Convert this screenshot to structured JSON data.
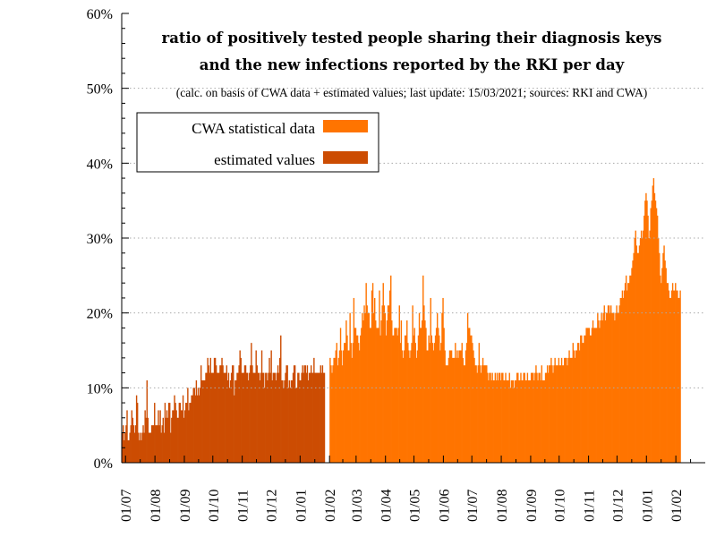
{
  "chart_data": {
    "type": "bar",
    "title_lines": [
      "ratio of positively tested people sharing their diagnosis keys",
      "and the new infections reported by the RKI per day"
    ],
    "subtitle": "(calc. on basis of CWA data + estimated values; last update: 15/03/2021; sources: RKI and CWA)",
    "xlabel": "",
    "ylabel": "",
    "y_unit": "%",
    "ylim": [
      0,
      60
    ],
    "y_ticks": [
      "0%",
      "10%",
      "20%",
      "30%",
      "40%",
      "50%",
      "60%"
    ],
    "x_range": [
      "2020-06-27",
      "2022-03-04"
    ],
    "x_ticks": [
      {
        "label": "01/07",
        "date": "2020-07-01"
      },
      {
        "label": "01/08",
        "date": "2020-08-01"
      },
      {
        "label": "01/09",
        "date": "2020-09-01"
      },
      {
        "label": "01/10",
        "date": "2020-10-01"
      },
      {
        "label": "01/11",
        "date": "2020-11-01"
      },
      {
        "label": "01/12",
        "date": "2020-12-01"
      },
      {
        "label": "01/01",
        "date": "2021-01-01"
      },
      {
        "label": "01/02",
        "date": "2021-02-01"
      },
      {
        "label": "01/03",
        "date": "2021-03-01"
      },
      {
        "label": "01/04",
        "date": "2021-04-01"
      },
      {
        "label": "01/05",
        "date": "2021-05-01"
      },
      {
        "label": "01/06",
        "date": "2021-06-01"
      },
      {
        "label": "01/07",
        "date": "2021-07-01"
      },
      {
        "label": "01/08",
        "date": "2021-08-01"
      },
      {
        "label": "01/09",
        "date": "2021-09-01"
      },
      {
        "label": "01/10",
        "date": "2021-10-01"
      },
      {
        "label": "01/11",
        "date": "2021-11-01"
      },
      {
        "label": "01/12",
        "date": "2021-12-01"
      },
      {
        "label": "01/01",
        "date": "2022-01-01"
      },
      {
        "label": "01/02",
        "date": "2022-02-01"
      }
    ],
    "grid": {
      "horizontal": true,
      "style": "dotted"
    },
    "legend_position": "top-left",
    "series": [
      {
        "name": "estimated values",
        "color": "#cc4c02",
        "start": "2020-06-27",
        "end": "2021-01-31",
        "values": [
          4,
          5,
          3,
          4,
          5,
          7,
          3,
          3,
          4,
          5,
          7,
          6,
          5,
          4,
          5,
          9,
          8,
          4,
          3,
          4,
          3,
          4,
          5,
          4,
          7,
          6,
          11,
          6,
          4,
          4,
          4,
          5,
          5,
          5,
          8,
          5,
          5,
          5,
          7,
          5,
          7,
          4,
          5,
          6,
          4,
          8,
          6,
          7,
          6,
          8,
          8,
          4,
          6,
          7,
          7,
          9,
          8,
          7,
          6,
          6,
          8,
          8,
          7,
          7,
          9,
          6,
          7,
          8,
          8,
          10,
          7,
          8,
          8,
          9,
          9,
          10,
          10,
          9,
          11,
          9,
          10,
          9,
          10,
          13,
          11,
          11,
          11,
          11,
          12,
          12,
          14,
          13,
          12,
          14,
          12,
          12,
          12,
          14,
          14,
          13,
          12,
          12,
          12,
          13,
          13,
          14,
          13,
          12,
          12,
          12,
          13,
          11,
          12,
          10,
          11,
          12,
          13,
          13,
          9,
          11,
          11,
          12,
          12,
          13,
          15,
          14,
          12,
          12,
          12,
          13,
          13,
          12,
          12,
          11,
          12,
          13,
          16,
          13,
          12,
          12,
          12,
          15,
          13,
          12,
          12,
          11,
          12,
          15,
          12,
          12,
          10,
          12,
          12,
          11,
          12,
          14,
          12,
          15,
          11,
          12,
          12,
          12,
          11,
          12,
          13,
          12,
          14,
          17,
          11,
          11,
          10,
          11,
          12,
          13,
          13,
          10,
          11,
          10,
          11,
          11,
          12,
          13,
          13,
          10,
          10,
          12,
          12,
          11,
          11,
          12,
          13,
          12,
          13,
          13,
          12,
          13,
          11,
          12,
          12,
          13,
          12,
          12,
          14,
          12,
          12,
          12,
          12,
          12,
          12,
          13,
          12,
          13,
          12,
          12
        ]
      },
      {
        "name": "CWA statistical data",
        "color": "#ff7400",
        "start": "2021-02-01",
        "end": "2022-03-04",
        "values": [
          14,
          13,
          12,
          13,
          14,
          14,
          15,
          16,
          13,
          14,
          15,
          18,
          15,
          13,
          15,
          16,
          16,
          19,
          17,
          15,
          15,
          20,
          16,
          14,
          16,
          22,
          18,
          18,
          17,
          17,
          16,
          15,
          17,
          18,
          20,
          19,
          21,
          20,
          24,
          21,
          20,
          20,
          18,
          18,
          23,
          24,
          20,
          22,
          19,
          18,
          18,
          18,
          23,
          17,
          19,
          21,
          24,
          21,
          20,
          17,
          19,
          21,
          21,
          23,
          25,
          19,
          17,
          17,
          18,
          18,
          18,
          17,
          18,
          21,
          16,
          19,
          15,
          14,
          15,
          17,
          17,
          19,
          16,
          15,
          14,
          15,
          16,
          21,
          17,
          18,
          16,
          14,
          15,
          17,
          20,
          18,
          18,
          19,
          25,
          21,
          19,
          18,
          15,
          15,
          17,
          16,
          22,
          17,
          16,
          15,
          16,
          17,
          18,
          20,
          18,
          17,
          15,
          16,
          20,
          22,
          18,
          15,
          13,
          13,
          13,
          14,
          15,
          15,
          15,
          14,
          14,
          14,
          16,
          14,
          15,
          14,
          15,
          15,
          15,
          16,
          14,
          13,
          13,
          15,
          16,
          20,
          18,
          18,
          17,
          17,
          16,
          15,
          14,
          13,
          13,
          12,
          13,
          16,
          13,
          12,
          13,
          14,
          13,
          13,
          13,
          13,
          12,
          11,
          12,
          12,
          11,
          12,
          11,
          11,
          12,
          11,
          12,
          11,
          12,
          12,
          11,
          12,
          12,
          11,
          11,
          12,
          11,
          11,
          11,
          12,
          10,
          11,
          11,
          11,
          10,
          11,
          11,
          12,
          12,
          11,
          11,
          12,
          11,
          11,
          12,
          12,
          11,
          11,
          12,
          11,
          11,
          11,
          12,
          12,
          12,
          11,
          12,
          13,
          12,
          11,
          12,
          12,
          11,
          13,
          11,
          11,
          11,
          12,
          12,
          13,
          12,
          13,
          13,
          14,
          13,
          12,
          13,
          14,
          13,
          13,
          13,
          14,
          13,
          13,
          14,
          13,
          13,
          14,
          14,
          14,
          13,
          14,
          15,
          14,
          14,
          14,
          16,
          15,
          14,
          15,
          15,
          16,
          16,
          15,
          17,
          17,
          16,
          16,
          17,
          17,
          18,
          18,
          18,
          18,
          17,
          17,
          18,
          19,
          18,
          18,
          18,
          18,
          20,
          19,
          18,
          19,
          20,
          19,
          20,
          21,
          19,
          20,
          20,
          21,
          21,
          20,
          21,
          20,
          20,
          20,
          19,
          20,
          21,
          20,
          20,
          21,
          22,
          22,
          23,
          22,
          23,
          24,
          25,
          23,
          24,
          24,
          25,
          25,
          26,
          27,
          28,
          30,
          31,
          29,
          28,
          28,
          29,
          30,
          31,
          30,
          31,
          33,
          35,
          36,
          35,
          33,
          30,
          31,
          34,
          35,
          37,
          38,
          36,
          35,
          34,
          33,
          30,
          28,
          25,
          24,
          26,
          28,
          29,
          27,
          26,
          24,
          24,
          23,
          22,
          22,
          23,
          24,
          23,
          23,
          24,
          23,
          23,
          22,
          22,
          23
        ]
      }
    ]
  }
}
